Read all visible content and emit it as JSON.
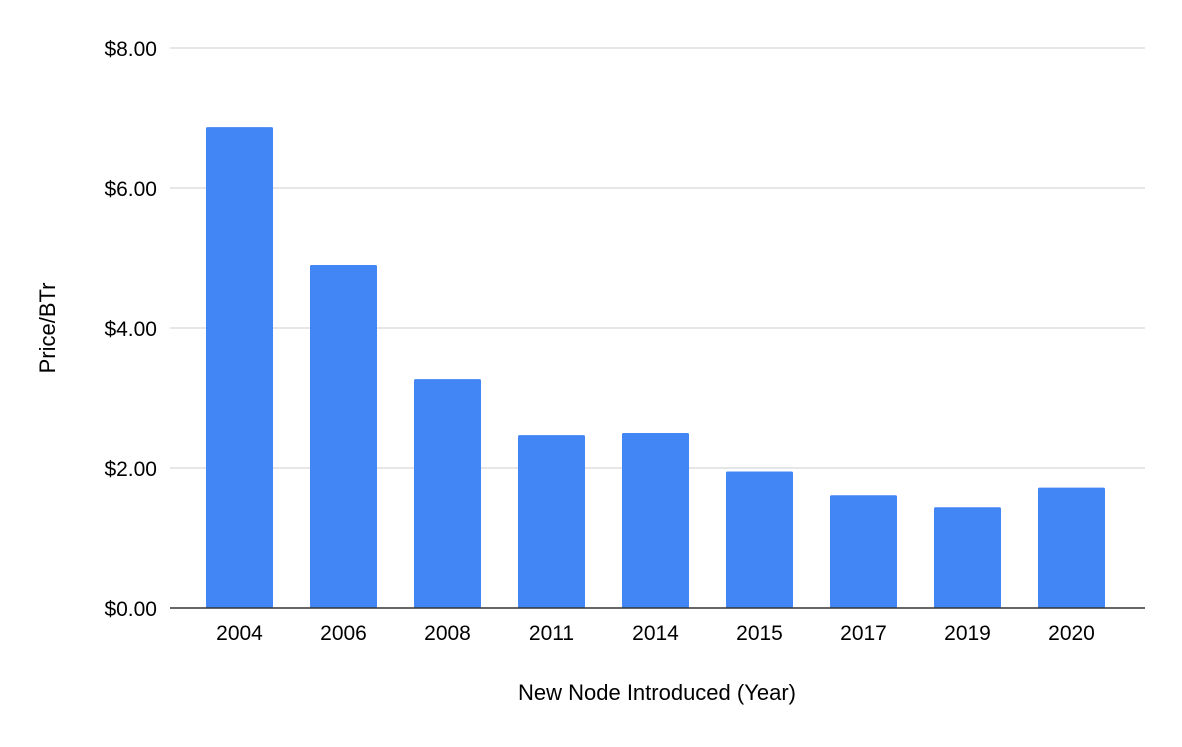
{
  "chart_data": {
    "type": "bar",
    "title": "",
    "xlabel": "New Node Introduced (Year)",
    "ylabel": "Price/BTr",
    "categories": [
      "2004",
      "2006",
      "2008",
      "2011",
      "2014",
      "2015",
      "2017",
      "2019",
      "2020"
    ],
    "values": [
      6.87,
      4.9,
      3.27,
      2.47,
      2.5,
      1.95,
      1.61,
      1.44,
      1.72
    ],
    "ylim": [
      0,
      8
    ],
    "yticks": [
      0,
      2,
      4,
      6,
      8
    ],
    "ytick_labels": [
      "$0.00",
      "$2.00",
      "$4.00",
      "$6.00",
      "$8.00"
    ],
    "grid": true,
    "legend": "none",
    "colors": {
      "bar": "#4285f4",
      "grid": "#cccccc",
      "axis": "#333333"
    }
  }
}
